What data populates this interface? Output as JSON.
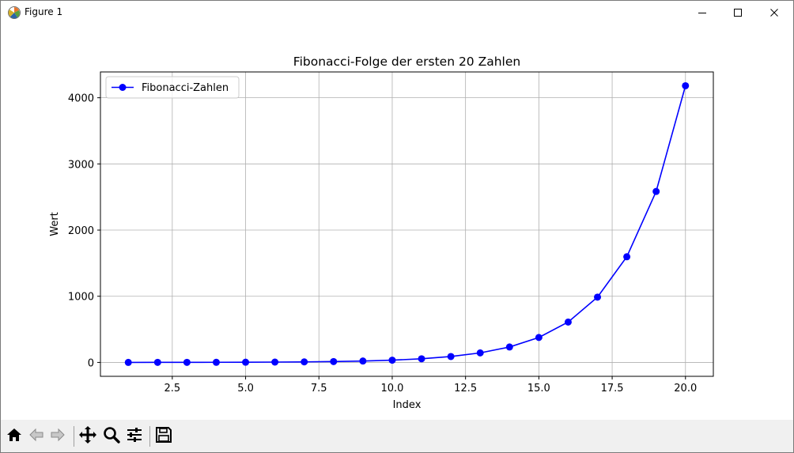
{
  "window": {
    "title": "Figure 1"
  },
  "icons": {
    "app": "matplotlib-logo-icon",
    "minimize": "minimize-icon",
    "maximize": "maximize-icon",
    "close": "close-icon"
  },
  "toolbar": {
    "items": [
      {
        "name": "home-icon",
        "tooltip": "Home"
      },
      {
        "name": "back-arrow-icon",
        "tooltip": "Back"
      },
      {
        "name": "forward-arrow-icon",
        "tooltip": "Forward"
      },
      {
        "name": "pan-move-icon",
        "tooltip": "Pan"
      },
      {
        "name": "zoom-magnifier-icon",
        "tooltip": "Zoom"
      },
      {
        "name": "configure-subplots-icon",
        "tooltip": "Subplots"
      },
      {
        "name": "save-floppy-icon",
        "tooltip": "Save"
      }
    ]
  },
  "colors": {
    "series": "#0000ff",
    "grid": "#b0b0b0",
    "toolbar_bg": "#f0f0f0"
  },
  "chart_data": {
    "type": "line",
    "title": "Fibonacci-Folge der ersten 20 Zahlen",
    "xlabel": "Index",
    "ylabel": "Wert",
    "xlim": [
      0.05,
      20.95
    ],
    "ylim": [
      -210,
      4390
    ],
    "xticks": [
      2.5,
      5.0,
      7.5,
      10.0,
      12.5,
      15.0,
      17.5,
      20.0
    ],
    "xtick_labels": [
      "2.5",
      "5.0",
      "7.5",
      "10.0",
      "12.5",
      "15.0",
      "17.5",
      "20.0"
    ],
    "yticks": [
      0,
      1000,
      2000,
      3000,
      4000
    ],
    "ytick_labels": [
      "0",
      "1000",
      "2000",
      "3000",
      "4000"
    ],
    "grid": true,
    "legend_position": "upper-left",
    "series": [
      {
        "name": "Fibonacci-Zahlen",
        "marker": "circle",
        "color": "#0000ff",
        "x": [
          1,
          2,
          3,
          4,
          5,
          6,
          7,
          8,
          9,
          10,
          11,
          12,
          13,
          14,
          15,
          16,
          17,
          18,
          19,
          20
        ],
        "y": [
          0,
          1,
          1,
          2,
          3,
          5,
          8,
          13,
          21,
          34,
          55,
          89,
          144,
          233,
          377,
          610,
          987,
          1597,
          2584,
          4181
        ]
      }
    ]
  }
}
